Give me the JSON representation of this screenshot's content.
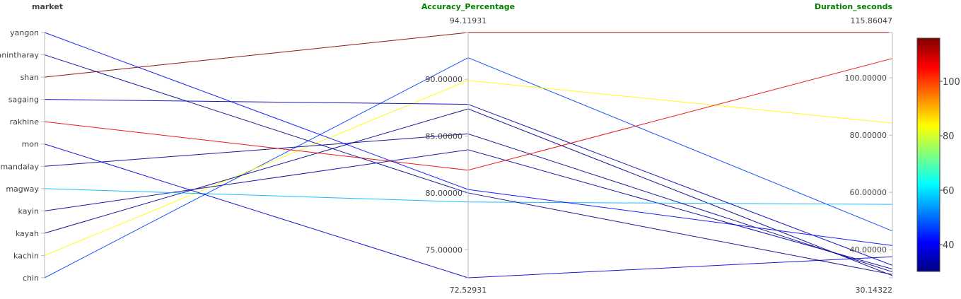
{
  "chart_data": {
    "type": "parallel_coordinates",
    "dimensions": [
      {
        "name": "market",
        "kind": "categorical",
        "title_color": "#444444",
        "categories": [
          "chin",
          "kachin",
          "kayah",
          "kayin",
          "magway",
          "mandalay",
          "mon",
          "rakhine",
          "sagaing",
          "shan",
          "tanintharay",
          "yangon"
        ]
      },
      {
        "name": "Accuracy_Percentage",
        "kind": "numeric",
        "title_color": "#008000",
        "range": [
          72.52931,
          94.11931
        ],
        "range_labels": {
          "min": "72.52931",
          "max": "94.11931"
        },
        "ticks": [
          {
            "value": 75,
            "label": "75.00000"
          },
          {
            "value": 80,
            "label": "80.00000"
          },
          {
            "value": 85,
            "label": "85.00000"
          },
          {
            "value": 90,
            "label": "90.00000"
          }
        ]
      },
      {
        "name": "Duration_seconds",
        "kind": "numeric",
        "title_color": "#008000",
        "range": [
          30.14322,
          115.86047
        ],
        "range_labels": {
          "min": "30.14322",
          "max": "115.86047"
        },
        "ticks": [
          {
            "value": 40,
            "label": "40.00000"
          },
          {
            "value": 60,
            "label": "60.00000"
          },
          {
            "value": 80,
            "label": "80.00000"
          },
          {
            "value": 100,
            "label": "100.00000"
          }
        ]
      }
    ],
    "records": [
      {
        "market": "chin",
        "Accuracy_Percentage": 91.9,
        "Duration_seconds": 46.5
      },
      {
        "market": "kachin",
        "Accuracy_Percentage": 89.9,
        "Duration_seconds": 84.2
      },
      {
        "market": "kayah",
        "Accuracy_Percentage": 87.4,
        "Duration_seconds": 30.9
      },
      {
        "market": "kayin",
        "Accuracy_Percentage": 83.8,
        "Duration_seconds": 33.2
      },
      {
        "market": "magway",
        "Accuracy_Percentage": 79.2,
        "Duration_seconds": 55.8
      },
      {
        "market": "mandalay",
        "Accuracy_Percentage": 85.2,
        "Duration_seconds": 32.2
      },
      {
        "market": "mon",
        "Accuracy_Percentage": 72.53,
        "Duration_seconds": 37.5
      },
      {
        "market": "rakhine",
        "Accuracy_Percentage": 82.0,
        "Duration_seconds": 106.8
      },
      {
        "market": "sagaing",
        "Accuracy_Percentage": 87.8,
        "Duration_seconds": 34.5
      },
      {
        "market": "shan",
        "Accuracy_Percentage": 94.12,
        "Duration_seconds": 115.86
      },
      {
        "market": "tanintharay",
        "Accuracy_Percentage": 80.0,
        "Duration_seconds": 31.3
      },
      {
        "market": "yangon",
        "Accuracy_Percentage": 80.3,
        "Duration_seconds": 41.4
      }
    ],
    "color_by": "Duration_seconds",
    "colorscale": [
      [
        0.0,
        "#000080"
      ],
      [
        0.125,
        "#0000ff"
      ],
      [
        0.375,
        "#00ffff"
      ],
      [
        0.625,
        "#ffff00"
      ],
      [
        0.875,
        "#ff0000"
      ],
      [
        1.0,
        "#800000"
      ]
    ],
    "colorbar": {
      "range": [
        30.14322,
        115.86047
      ],
      "ticks": [
        {
          "value": 40,
          "label": "40"
        },
        {
          "value": 60,
          "label": "60"
        },
        {
          "value": 80,
          "label": "80"
        },
        {
          "value": 100,
          "label": "100"
        }
      ]
    }
  }
}
